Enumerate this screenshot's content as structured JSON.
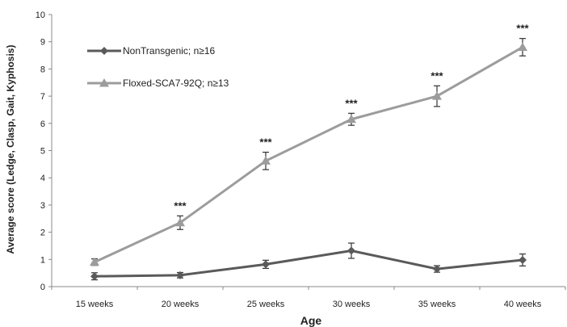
{
  "chart_data": {
    "type": "line",
    "xlabel": "Age",
    "ylabel": "Average score (Ledge, Clasp, Gait, Kyphosis)",
    "categories": [
      "15 weeks",
      "20 weeks",
      "25 weeks",
      "30 weeks",
      "35 weeks",
      "40 weeks"
    ],
    "ylim": [
      0,
      10
    ],
    "yticks": [
      "0",
      "1",
      "2",
      "3",
      "4",
      "5",
      "6",
      "7",
      "8",
      "9",
      "10"
    ],
    "grid": false,
    "legend_position": "top-left",
    "series": [
      {
        "name": "NonTransgenic; n≥16",
        "color": "#5a5a5a",
        "marker": "diamond",
        "values": [
          0.38,
          0.42,
          0.82,
          1.32,
          0.65,
          0.98
        ],
        "errors": [
          0.13,
          0.1,
          0.15,
          0.28,
          0.12,
          0.22
        ]
      },
      {
        "name": "Floxed-SCA7-92Q; n≥13",
        "color": "#9c9c9c",
        "marker": "triangle",
        "values": [
          0.9,
          2.35,
          4.62,
          6.15,
          7.0,
          8.8
        ],
        "errors": [
          0.12,
          0.25,
          0.32,
          0.22,
          0.38,
          0.32
        ]
      }
    ],
    "annotations": [
      "",
      "***",
      "***",
      "***",
      "***",
      "***"
    ]
  }
}
